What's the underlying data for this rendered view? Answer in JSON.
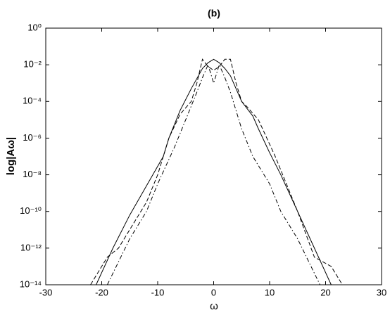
{
  "chart_data": {
    "type": "line",
    "title": "(b)",
    "x_label": "ω",
    "y_label": "log|Aω|",
    "yscale": "log",
    "color": "#000000",
    "xlim": [
      -30,
      30
    ],
    "xticks": [
      -30,
      -20,
      -10,
      0,
      10,
      20,
      30
    ],
    "ylim": [
      1e-14,
      1
    ],
    "yticks": [
      {
        "value": 1,
        "label": "10⁰"
      },
      {
        "value": 0.01,
        "label": "10⁻²"
      },
      {
        "value": 0.0001,
        "label": "10⁻⁴"
      },
      {
        "value": 1e-06,
        "label": "10⁻⁶"
      },
      {
        "value": 1e-08,
        "label": "10⁻⁸"
      },
      {
        "value": 1e-10,
        "label": "10⁻¹⁰"
      },
      {
        "value": 1e-12,
        "label": "10⁻¹²"
      },
      {
        "value": 1e-14,
        "label": "10⁻¹⁴"
      }
    ],
    "series": [
      {
        "color": "#000000",
        "dash": "solid",
        "x": [
          -21,
          -18,
          -15,
          -12,
          -9,
          -8,
          -6,
          -4,
          -2,
          -1,
          0,
          1,
          2,
          3,
          4,
          5,
          6,
          7,
          8,
          10,
          12,
          15,
          18,
          21
        ],
        "values": [
          1e-14,
          1e-12,
          6.3e-11,
          2.5e-09,
          1e-07,
          1e-06,
          3.2e-05,
          0.0005,
          0.0063,
          0.013,
          0.02,
          0.013,
          0.0063,
          0.0025,
          0.0005,
          0.0001,
          4e-05,
          1.6e-05,
          3.2e-06,
          1.6e-07,
          1e-08,
          1e-10,
          1e-12,
          1e-14
        ]
      },
      {
        "color": "#000000",
        "dash": "dashed",
        "x": [
          -22,
          -19,
          -17,
          -14,
          -12,
          -10,
          -8,
          -6,
          -4,
          -3,
          -2,
          -1,
          0,
          1,
          2,
          3,
          4,
          5,
          6,
          8,
          11,
          13,
          15,
          18,
          21,
          23
        ],
        "values": [
          1e-14,
          3.2e-13,
          1e-12,
          3.2e-11,
          3.2e-10,
          1e-08,
          1e-06,
          2e-05,
          0.0001,
          0.001,
          0.02,
          0.008,
          0.005,
          0.008,
          0.02,
          0.02,
          0.001,
          0.0001,
          5e-05,
          1e-05,
          1e-07,
          3.2e-09,
          1e-10,
          3.2e-13,
          1e-13,
          1e-14
        ]
      },
      {
        "color": "#000000",
        "dash": "dashdot",
        "x": [
          -19,
          -15,
          -12,
          -10,
          -7,
          -5,
          -3,
          -2,
          -1,
          0,
          1,
          2,
          3,
          5,
          7,
          10,
          12,
          15,
          19
        ],
        "values": [
          1e-14,
          3.2e-12,
          1e-10,
          3.2e-09,
          3.2e-07,
          1e-05,
          0.00032,
          0.002,
          0.01,
          0.001,
          0.01,
          0.002,
          0.00032,
          3.2e-06,
          1e-07,
          3.2e-09,
          1e-10,
          3.2e-12,
          1e-14
        ]
      }
    ]
  }
}
